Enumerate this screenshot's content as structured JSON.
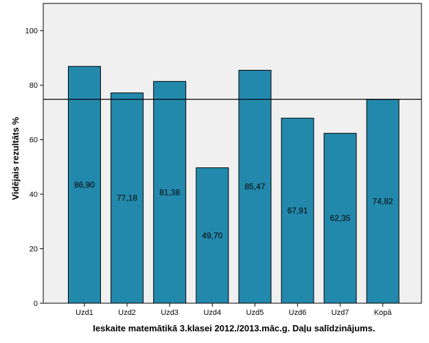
{
  "chart_data": {
    "type": "bar",
    "categories": [
      "Uzd1",
      "Uzd2",
      "Uzd3",
      "Uzd4",
      "Uzd5",
      "Uzd6",
      "Uzd7",
      "Kopā"
    ],
    "values": [
      86.9,
      77.18,
      81.38,
      49.7,
      85.47,
      67.91,
      62.35,
      74.82
    ],
    "value_labels": [
      "86,90",
      "77,18",
      "81,38",
      "49,70",
      "85,47",
      "67,91",
      "62,35",
      "74,82"
    ],
    "xlabel": "Ieskaite matemātikā 3.klasei 2012./2013.māc.g. Daļu salīdzinājums.",
    "ylabel": "Vidējais rezultāts %",
    "ylim": [
      0,
      110
    ],
    "yticks": [
      0,
      20,
      40,
      60,
      80,
      100
    ],
    "reference_line": 74.82,
    "grid": false,
    "legend": "none",
    "colors": {
      "bar": "#2389AC",
      "plot_background": "#F0F0F0",
      "reference_line": "#000000"
    }
  }
}
